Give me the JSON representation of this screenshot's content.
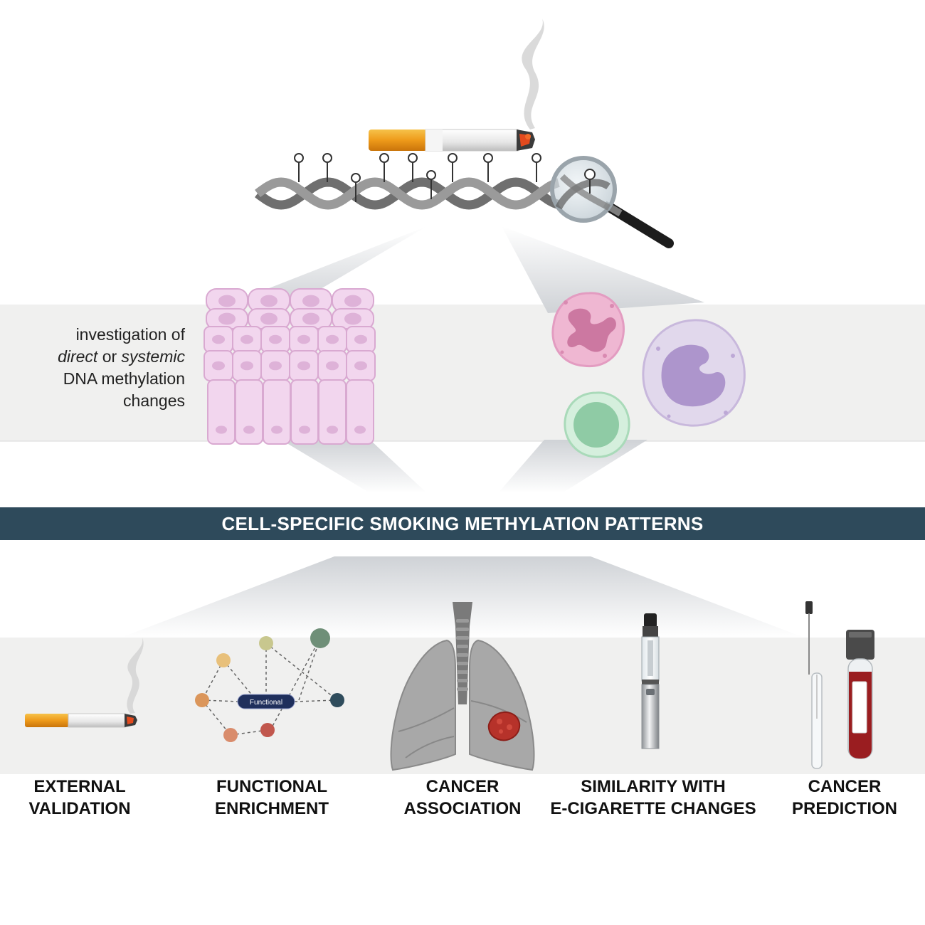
{
  "side_text": {
    "line1": "investigation of",
    "direct": "direct",
    "or": " or ",
    "systemic": "systemic",
    "line3": "DNA methylation",
    "line4": "changes"
  },
  "banner": {
    "title": "CELL-SPECIFIC SMOKING METHYLATION PATTERNS"
  },
  "outcomes": [
    {
      "line1": "EXTERNAL",
      "line2": "VALIDATION"
    },
    {
      "line1": "FUNCTIONAL",
      "line2": "ENRICHMENT"
    },
    {
      "line1": "CANCER",
      "line2": "ASSOCIATION"
    },
    {
      "line1": "SIMILARITY WITH",
      "line2": "E-CIGARETTE CHANGES"
    },
    {
      "line1": "CANCER",
      "line2": "PREDICTION"
    }
  ],
  "network": {
    "center_label": "Functional"
  },
  "colors": {
    "banner": "#2e4a5b",
    "band": "#f0f0ef",
    "filter": "#f0a020",
    "epithelial": "#f2d6ee",
    "neutrophil": "#e9a9c8",
    "monocyte": "#c9b8dd",
    "lymphocyte": "#a7d8b4",
    "blood": "#9a1d20"
  }
}
